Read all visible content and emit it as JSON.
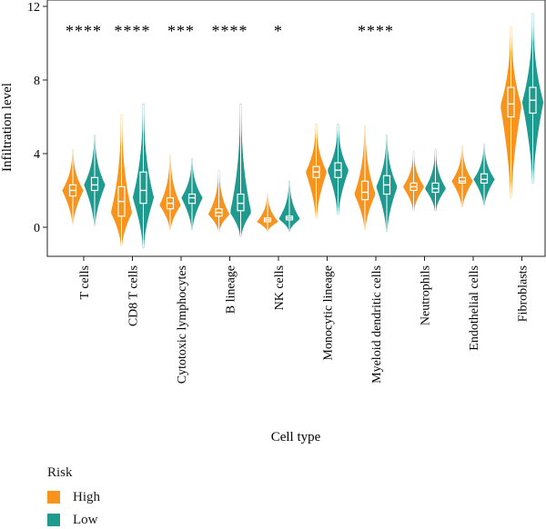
{
  "chart_data": {
    "type": "violin",
    "xlabel": "Cell type",
    "ylabel": "Infiltration level",
    "yticks": [
      "0",
      "4",
      "8",
      "12"
    ],
    "ylim": [
      0,
      12
    ],
    "categories": [
      "T cells",
      "CD8 T cells",
      "Cytotoxic lymphocytes",
      "B lineage",
      "NK cells",
      "Monocytic lineage",
      "Myeloid dendritic cells",
      "Neutrophils",
      "Endothelial cells",
      "Fibroblasts"
    ],
    "significance": [
      "****",
      "****",
      "***",
      "****",
      "*",
      "",
      "****",
      "",
      "",
      ""
    ],
    "legend": {
      "title": "Risk",
      "position": "bottom-left"
    },
    "series": [
      {
        "name": "High",
        "color": "#F7941D",
        "stats": [
          {
            "min": 0.2,
            "q1": 1.7,
            "median": 2.0,
            "q3": 2.3,
            "max": 4.2,
            "mode": 2.0
          },
          {
            "min": -1.0,
            "q1": 0.6,
            "median": 1.4,
            "q3": 2.2,
            "max": 6.1,
            "mode": 0.8
          },
          {
            "min": -0.1,
            "q1": 1.0,
            "median": 1.3,
            "q3": 1.6,
            "max": 3.9,
            "mode": 1.2
          },
          {
            "min": -0.2,
            "q1": 0.6,
            "median": 0.8,
            "q3": 1.0,
            "max": 3.1,
            "mode": 0.7
          },
          {
            "min": -0.2,
            "q1": 0.3,
            "median": 0.4,
            "q3": 0.5,
            "max": 1.8,
            "mode": 0.3
          },
          {
            "min": 0.5,
            "q1": 2.7,
            "median": 3.0,
            "q3": 3.3,
            "max": 5.6,
            "mode": 3.0
          },
          {
            "min": -0.1,
            "q1": 1.5,
            "median": 1.9,
            "q3": 2.5,
            "max": 5.5,
            "mode": 1.8
          },
          {
            "min": 0.9,
            "q1": 2.0,
            "median": 2.2,
            "q3": 2.4,
            "max": 4.1,
            "mode": 2.2
          },
          {
            "min": 1.1,
            "q1": 2.4,
            "median": 2.5,
            "q3": 2.7,
            "max": 4.4,
            "mode": 2.5
          },
          {
            "min": 1.6,
            "q1": 6.0,
            "median": 6.7,
            "q3": 7.6,
            "max": 10.9,
            "mode": 6.6
          }
        ]
      },
      {
        "name": "Low",
        "color": "#1F9A8F",
        "stats": [
          {
            "min": 0.1,
            "q1": 2.0,
            "median": 2.3,
            "q3": 2.7,
            "max": 5.0,
            "mode": 2.3
          },
          {
            "min": -1.1,
            "q1": 1.3,
            "median": 2.0,
            "q3": 3.0,
            "max": 6.7,
            "mode": 1.6
          },
          {
            "min": -0.1,
            "q1": 1.3,
            "median": 1.6,
            "q3": 1.8,
            "max": 3.7,
            "mode": 1.6
          },
          {
            "min": -0.5,
            "q1": 0.9,
            "median": 1.3,
            "q3": 1.8,
            "max": 6.7,
            "mode": 0.8
          },
          {
            "min": -0.2,
            "q1": 0.4,
            "median": 0.5,
            "q3": 0.6,
            "max": 2.5,
            "mode": 0.45
          },
          {
            "min": 0.7,
            "q1": 2.7,
            "median": 3.1,
            "q3": 3.5,
            "max": 5.6,
            "mode": 3.1
          },
          {
            "min": -0.2,
            "q1": 1.8,
            "median": 2.3,
            "q3": 2.8,
            "max": 5.0,
            "mode": 2.2
          },
          {
            "min": 0.9,
            "q1": 1.9,
            "median": 2.1,
            "q3": 2.4,
            "max": 4.2,
            "mode": 2.1
          },
          {
            "min": 1.2,
            "q1": 2.4,
            "median": 2.6,
            "q3": 2.9,
            "max": 4.5,
            "mode": 2.6
          },
          {
            "min": 2.4,
            "q1": 6.2,
            "median": 6.9,
            "q3": 7.6,
            "max": 11.6,
            "mode": 6.8
          }
        ]
      }
    ]
  }
}
